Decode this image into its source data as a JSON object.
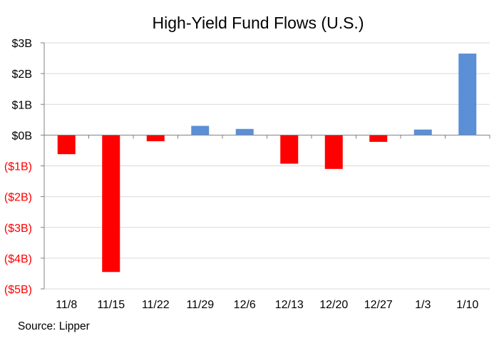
{
  "chart_data": {
    "type": "bar",
    "title": "High-Yield  Fund Flows (U.S.)",
    "categories": [
      "11/8",
      "11/15",
      "11/22",
      "11/29",
      "12/6",
      "12/13",
      "12/20",
      "12/27",
      "1/3",
      "1/10"
    ],
    "values": [
      -0.62,
      -4.45,
      -0.2,
      0.3,
      0.2,
      -0.93,
      -1.1,
      -0.22,
      0.18,
      2.65
    ],
    "unit": "$ billions",
    "ylim": [
      -5,
      3
    ],
    "yticks": [
      3,
      2,
      1,
      0,
      -1,
      -2,
      -3,
      -4,
      -5
    ],
    "ytick_labels": [
      "$3B",
      "$2B",
      "$1B",
      "$0B",
      "($1B)",
      "($2B)",
      "($3B)",
      "($4B)",
      "($5B)"
    ],
    "xlabel": "",
    "ylabel": "",
    "grid": true,
    "legend": "none",
    "colors": {
      "positive_bar": "#5b8fd6",
      "negative_bar": "#ff0000",
      "positive_tick": "#000000",
      "negative_tick": "#ff0000",
      "grid": "#d9d9d9",
      "axis": "#808080"
    }
  },
  "source": "Source: Lipper"
}
